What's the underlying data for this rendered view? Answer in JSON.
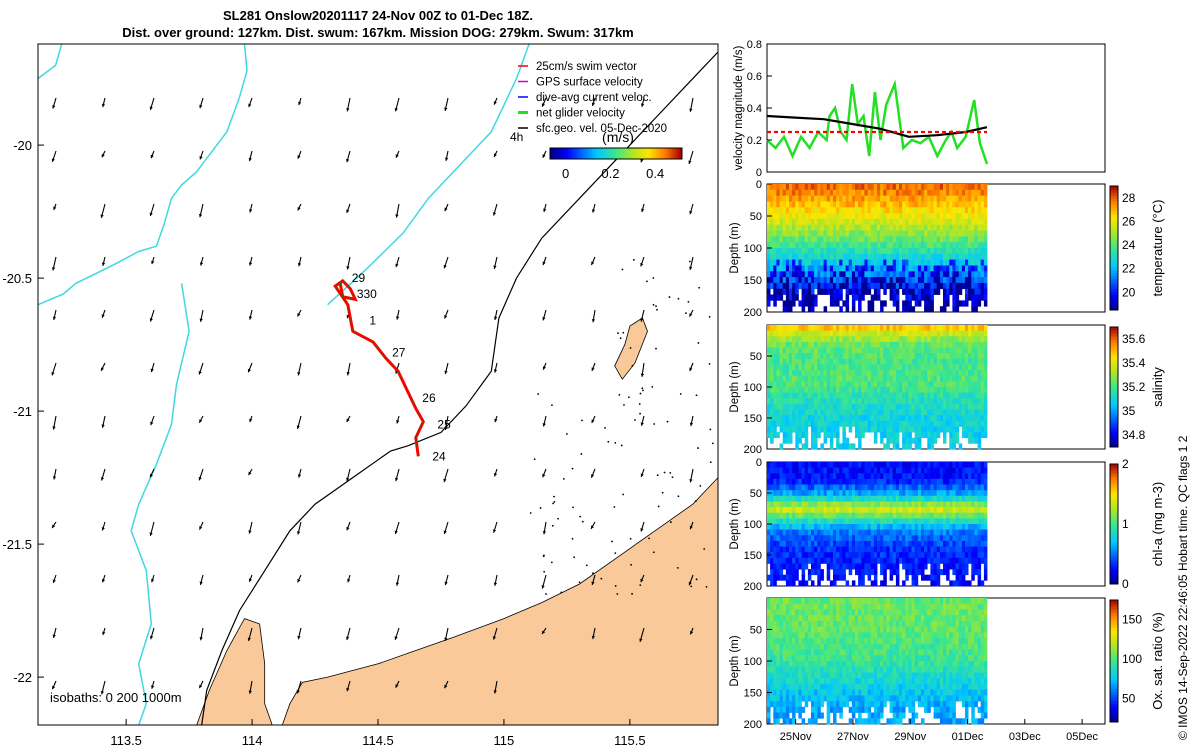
{
  "title": {
    "line1": "SL281 Onslow20201117 24-Nov 00Z to 01-Dec 18Z.",
    "line2": "Dist. over ground: 127km. Dist. swum: 167km. Mission DOG: 279km. Swum: 317km"
  },
  "credit": "© IMOS 14-Sep-2022 22:46:05 Hobart time. QC flags 1  2",
  "colors": {
    "land": "#f9c99a",
    "coast": "#000000",
    "isobath200": "#000000",
    "isobath_shallow": "#3fd8e0",
    "track": "#ff0000",
    "net_velocity": "#22e022",
    "mean_line": "#000000"
  },
  "chart_data": [
    {
      "id": "map",
      "type": "map",
      "xlim": [
        113.15,
        115.85
      ],
      "ylim": [
        -22.18,
        -19.62
      ],
      "x_ticks": [
        "113.5",
        "114",
        "114.5",
        "115",
        "115.5"
      ],
      "x_tick_values": [
        113.5,
        114,
        114.5,
        115,
        115.5
      ],
      "y_ticks": [
        "-20",
        "-20.5",
        "-21",
        "-21.5",
        "-22"
      ],
      "y_tick_values": [
        -20,
        -20.5,
        -21,
        -21.5,
        -22
      ],
      "isobath_label": "isobaths: 0   200  1000m",
      "legend": [
        {
          "label": "25cm/s swim vector",
          "color": "#ff0000"
        },
        {
          "label": "GPS surface velocity",
          "color": "#cc00cc"
        },
        {
          "label": "dive-avg current veloc.",
          "color": "#0000ff"
        },
        {
          "label": "net glider velocity",
          "color": "#22e022"
        },
        {
          "label": "sfc.geo. vel. 05-Dec-2020",
          "color": "#000000"
        }
      ],
      "colorbar": {
        "label": "(m/s)",
        "side_label": "4h",
        "ticks": [
          "0",
          "0.2",
          "0.4"
        ],
        "tick_values": [
          0,
          0.2,
          0.4
        ],
        "range": [
          -0.07,
          0.52
        ]
      },
      "day_labels": [
        {
          "label": "29",
          "lon": 114.38,
          "lat": -20.5
        },
        {
          "label": "330",
          "lon": 114.4,
          "lat": -20.56
        },
        {
          "label": "1",
          "lon": 114.45,
          "lat": -20.66
        },
        {
          "label": "27",
          "lon": 114.54,
          "lat": -20.78
        },
        {
          "label": "26",
          "lon": 114.66,
          "lat": -20.95
        },
        {
          "label": "25",
          "lon": 114.72,
          "lat": -21.05
        },
        {
          "label": "24",
          "lon": 114.7,
          "lat": -21.17
        }
      ],
      "track": [
        [
          114.66,
          -21.17
        ],
        [
          114.65,
          -21.1
        ],
        [
          114.68,
          -21.04
        ],
        [
          114.65,
          -20.99
        ],
        [
          114.62,
          -20.93
        ],
        [
          114.58,
          -20.85
        ],
        [
          114.53,
          -20.8
        ],
        [
          114.48,
          -20.74
        ],
        [
          114.4,
          -20.7
        ],
        [
          114.38,
          -20.6
        ],
        [
          114.33,
          -20.53
        ],
        [
          114.36,
          -20.51
        ],
        [
          114.39,
          -20.54
        ],
        [
          114.41,
          -20.58
        ],
        [
          114.36,
          -20.57
        ],
        [
          114.35,
          -20.52
        ]
      ],
      "isobath_shallow": [
        [
          113.15,
          -19.75
        ],
        [
          113.22,
          -19.7
        ],
        [
          113.25,
          -19.6
        ],
        [
          113.15,
          -20.6
        ],
        [
          113.25,
          -20.56
        ],
        [
          113.3,
          -20.52
        ],
        [
          113.45,
          -20.45
        ],
        [
          113.55,
          -20.4
        ],
        [
          113.62,
          -20.38
        ],
        [
          113.65,
          -20.3
        ],
        [
          113.68,
          -20.2
        ],
        [
          113.72,
          -20.15
        ],
        [
          113.78,
          -20.1
        ],
        [
          113.82,
          -20.05
        ],
        [
          113.9,
          -19.95
        ],
        [
          113.95,
          -19.82
        ],
        [
          113.98,
          -19.72
        ],
        [
          113.97,
          -19.62
        ]
      ],
      "isobath_shallow_2": [
        [
          114.3,
          -20.6
        ],
        [
          114.45,
          -20.47
        ],
        [
          114.6,
          -20.33
        ],
        [
          114.7,
          -20.2
        ],
        [
          114.85,
          -20.05
        ],
        [
          114.95,
          -19.95
        ],
        [
          115.0,
          -19.85
        ],
        [
          115.05,
          -19.75
        ],
        [
          115.1,
          -19.62
        ]
      ],
      "isobath_shallow_3": [
        [
          113.72,
          -20.52
        ],
        [
          113.75,
          -20.7
        ],
        [
          113.7,
          -20.9
        ],
        [
          113.68,
          -21.05
        ],
        [
          113.62,
          -21.2
        ],
        [
          113.55,
          -21.35
        ],
        [
          113.52,
          -21.45
        ],
        [
          113.58,
          -21.6
        ],
        [
          113.6,
          -21.8
        ],
        [
          113.55,
          -21.95
        ],
        [
          113.58,
          -22.1
        ],
        [
          113.55,
          -22.18
        ]
      ],
      "isobath_200": [
        [
          113.8,
          -22.18
        ],
        [
          113.82,
          -22.05
        ],
        [
          113.88,
          -21.9
        ],
        [
          113.95,
          -21.75
        ],
        [
          114.05,
          -21.6
        ],
        [
          114.15,
          -21.45
        ],
        [
          114.25,
          -21.35
        ],
        [
          114.4,
          -21.25
        ],
        [
          114.55,
          -21.15
        ],
        [
          114.62,
          -21.13
        ],
        [
          114.75,
          -21.08
        ],
        [
          114.85,
          -20.98
        ],
        [
          114.95,
          -20.85
        ],
        [
          114.98,
          -20.65
        ],
        [
          115.05,
          -20.5
        ],
        [
          115.15,
          -20.35
        ],
        [
          115.3,
          -20.2
        ],
        [
          115.45,
          -20.05
        ],
        [
          115.6,
          -19.9
        ],
        [
          115.75,
          -19.75
        ],
        [
          115.85,
          -19.65
        ]
      ],
      "land": [
        [
          115.85,
          -21.25
        ],
        [
          115.75,
          -21.35
        ],
        [
          115.6,
          -21.45
        ],
        [
          115.45,
          -21.55
        ],
        [
          115.3,
          -21.65
        ],
        [
          115.15,
          -21.72
        ],
        [
          115.0,
          -21.78
        ],
        [
          114.8,
          -21.85
        ],
        [
          114.65,
          -21.9
        ],
        [
          114.5,
          -21.95
        ],
        [
          114.3,
          -22.0
        ],
        [
          114.2,
          -22.02
        ],
        [
          114.15,
          -22.1
        ],
        [
          114.12,
          -22.18
        ],
        [
          115.85,
          -22.18
        ]
      ],
      "land_left": [
        [
          113.78,
          -22.18
        ],
        [
          113.83,
          -22.05
        ],
        [
          113.9,
          -21.9
        ],
        [
          113.97,
          -21.78
        ],
        [
          114.03,
          -21.8
        ],
        [
          114.05,
          -21.95
        ],
        [
          114.05,
          -22.1
        ],
        [
          114.08,
          -22.18
        ]
      ],
      "island": [
        [
          115.48,
          -20.75
        ],
        [
          115.5,
          -20.68
        ],
        [
          115.55,
          -20.65
        ],
        [
          115.57,
          -20.7
        ],
        [
          115.52,
          -20.82
        ],
        [
          115.47,
          -20.88
        ],
        [
          115.44,
          -20.83
        ]
      ]
    },
    {
      "id": "velocity",
      "type": "line",
      "ylabel": "velocity magnitude (m/s)",
      "ylim": [
        0,
        0.8
      ],
      "y_ticks": [
        "0",
        "0.2",
        "0.4",
        "0.6",
        "0.8"
      ],
      "y_tick_values": [
        0,
        0.2,
        0.4,
        0.6,
        0.8
      ],
      "xlim": [
        0,
        7.75
      ],
      "series": [
        {
          "color": "#22e022",
          "x": [
            0,
            0.3,
            0.6,
            0.9,
            1.2,
            1.5,
            1.8,
            2.1,
            2.2,
            2.4,
            2.6,
            2.8,
            3.0,
            3.2,
            3.4,
            3.6,
            3.8,
            4.0,
            4.2,
            4.5,
            4.8,
            5.1,
            5.4,
            5.7,
            6.0,
            6.3,
            6.5,
            6.7,
            7.0,
            7.3,
            7.5,
            7.75
          ],
          "y": [
            0.2,
            0.15,
            0.22,
            0.1,
            0.22,
            0.15,
            0.25,
            0.2,
            0.35,
            0.4,
            0.25,
            0.2,
            0.55,
            0.3,
            0.35,
            0.1,
            0.5,
            0.2,
            0.42,
            0.55,
            0.15,
            0.2,
            0.18,
            0.22,
            0.1,
            0.2,
            0.25,
            0.15,
            0.22,
            0.45,
            0.18,
            0.05
          ]
        },
        {
          "color": "#000000",
          "x": [
            0,
            1,
            2,
            3,
            4,
            5,
            6,
            7,
            7.75
          ],
          "y": [
            0.35,
            0.34,
            0.33,
            0.3,
            0.27,
            0.22,
            0.23,
            0.25,
            0.28
          ]
        },
        {
          "color": "#ff0000",
          "dashed": true,
          "x": [
            0,
            7.75
          ],
          "y": [
            0.25,
            0.25
          ]
        }
      ]
    },
    {
      "id": "temperature",
      "type": "heatmap",
      "ylabel": "Depth (m)",
      "y_ticks": [
        "0",
        "50",
        "100",
        "150",
        "200"
      ],
      "y_tick_values": [
        0,
        50,
        100,
        150,
        200
      ],
      "colorbar": {
        "label": "temperature (°C)",
        "ticks": [
          "20",
          "22",
          "24",
          "26",
          "28"
        ],
        "tick_values": [
          20,
          22,
          24,
          26,
          28
        ],
        "range": [
          18.5,
          29
        ]
      },
      "profile_depths": [
        0,
        30,
        60,
        90,
        120,
        150,
        180,
        200
      ],
      "profile_values": [
        28,
        27,
        25.5,
        24,
        22.5,
        21,
        19.5,
        19
      ]
    },
    {
      "id": "salinity",
      "type": "heatmap",
      "ylabel": "Depth (m)",
      "y_ticks": [
        "50",
        "100",
        "150",
        "200"
      ],
      "y_tick_values": [
        50,
        100,
        150,
        200
      ],
      "colorbar": {
        "label": "salinity",
        "ticks": [
          "34.8",
          "35",
          "35.2",
          "35.4",
          "35.6"
        ],
        "tick_values": [
          34.8,
          35,
          35.2,
          35.4,
          35.6
        ],
        "range": [
          34.7,
          35.7
        ]
      },
      "profile_depths": [
        0,
        10,
        30,
        60,
        90,
        120,
        150,
        200
      ],
      "profile_values": [
        35.55,
        35.4,
        35.25,
        35.2,
        35.22,
        35.15,
        35.1,
        35.08
      ]
    },
    {
      "id": "chla",
      "type": "heatmap",
      "ylabel": "Depth (m)",
      "y_ticks": [
        "0",
        "50",
        "100",
        "150",
        "200"
      ],
      "y_tick_values": [
        0,
        50,
        100,
        150,
        200
      ],
      "colorbar": {
        "label": "chl-a (mg m-3)",
        "ticks": [
          "0",
          "1",
          "2"
        ],
        "tick_values": [
          0,
          1,
          2
        ],
        "range": [
          0,
          2
        ]
      },
      "profile_depths": [
        0,
        30,
        55,
        75,
        90,
        110,
        140,
        200
      ],
      "profile_values": [
        0.25,
        0.3,
        0.7,
        1.4,
        1.0,
        0.55,
        0.35,
        0.25
      ]
    },
    {
      "id": "oxygen",
      "type": "heatmap",
      "ylabel": "Depth (m)",
      "y_ticks": [
        "50",
        "100",
        "150",
        "200"
      ],
      "y_tick_values": [
        50,
        100,
        150,
        200
      ],
      "x_ticks": [
        "25Nov",
        "27Nov",
        "29Nov",
        "01Dec",
        "03Dec",
        "05Dec"
      ],
      "x_tick_values": [
        1,
        3,
        5,
        7,
        9,
        11
      ],
      "xlim": [
        0,
        11.8
      ],
      "data_xlim": [
        0,
        7.75
      ],
      "colorbar": {
        "label": "Ox. sat. ratio (%)",
        "ticks": [
          "50",
          "100",
          "150"
        ],
        "tick_values": [
          50,
          100,
          150
        ],
        "range": [
          20,
          175
        ]
      },
      "profile_depths": [
        0,
        50,
        100,
        140,
        170,
        200
      ],
      "profile_values": [
        105,
        103,
        95,
        80,
        70,
        68
      ]
    }
  ]
}
